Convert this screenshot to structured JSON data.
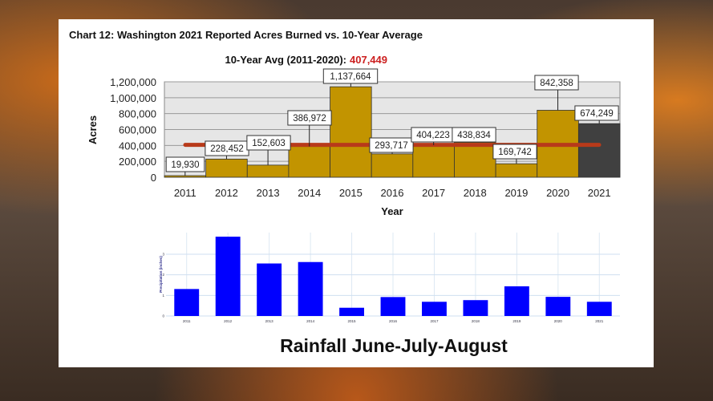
{
  "chart_data": [
    {
      "type": "bar",
      "title": "Chart 12: Washington 2021 Reported Acres Burned vs. 10-Year Average",
      "subtitle_label": "10-Year Avg (2011-2020):",
      "subtitle_value": "407,449",
      "average": 407449,
      "xlabel": "Year",
      "ylabel": "Acres",
      "ylim": [
        0,
        1200000
      ],
      "yticks": [
        "0",
        "200,000",
        "400,000",
        "600,000",
        "800,000",
        "1,000,000",
        "1,200,000"
      ],
      "categories": [
        "2011",
        "2012",
        "2013",
        "2014",
        "2015",
        "2016",
        "2017",
        "2018",
        "2019",
        "2020",
        "2021"
      ],
      "values": [
        19930,
        228452,
        152603,
        386972,
        1137664,
        293717,
        404223,
        438834,
        169742,
        842358,
        674249
      ],
      "data_labels": [
        "19,930",
        "228,452",
        "152,603",
        "386,972",
        "1,137,664",
        "293,717",
        "404,223",
        "438,834",
        "169,742",
        "842,358",
        "674,249"
      ],
      "grid": true,
      "colors": {
        "bar": "#c29400",
        "highlight": "#404040",
        "average_line": "#b83a1a",
        "plot_bg": "#e6e6e6",
        "subtitle_value": "#cc1f1f"
      }
    },
    {
      "type": "bar",
      "title": "Rainfall June-July-August",
      "ylabel": "Precipitation (inches)",
      "ylim": [
        0,
        4.05
      ],
      "yticks": [
        "0",
        "1",
        "2",
        "3"
      ],
      "categories": [
        "2011",
        "2012",
        "2013",
        "2014",
        "2015",
        "2016",
        "2017",
        "2018",
        "2019",
        "2020",
        "2021"
      ],
      "values": [
        1.31,
        3.85,
        2.55,
        2.62,
        0.4,
        0.92,
        0.69,
        0.77,
        1.44,
        0.93,
        0.69
      ],
      "grid": true,
      "colors": {
        "bar": "#0000ff"
      }
    }
  ]
}
